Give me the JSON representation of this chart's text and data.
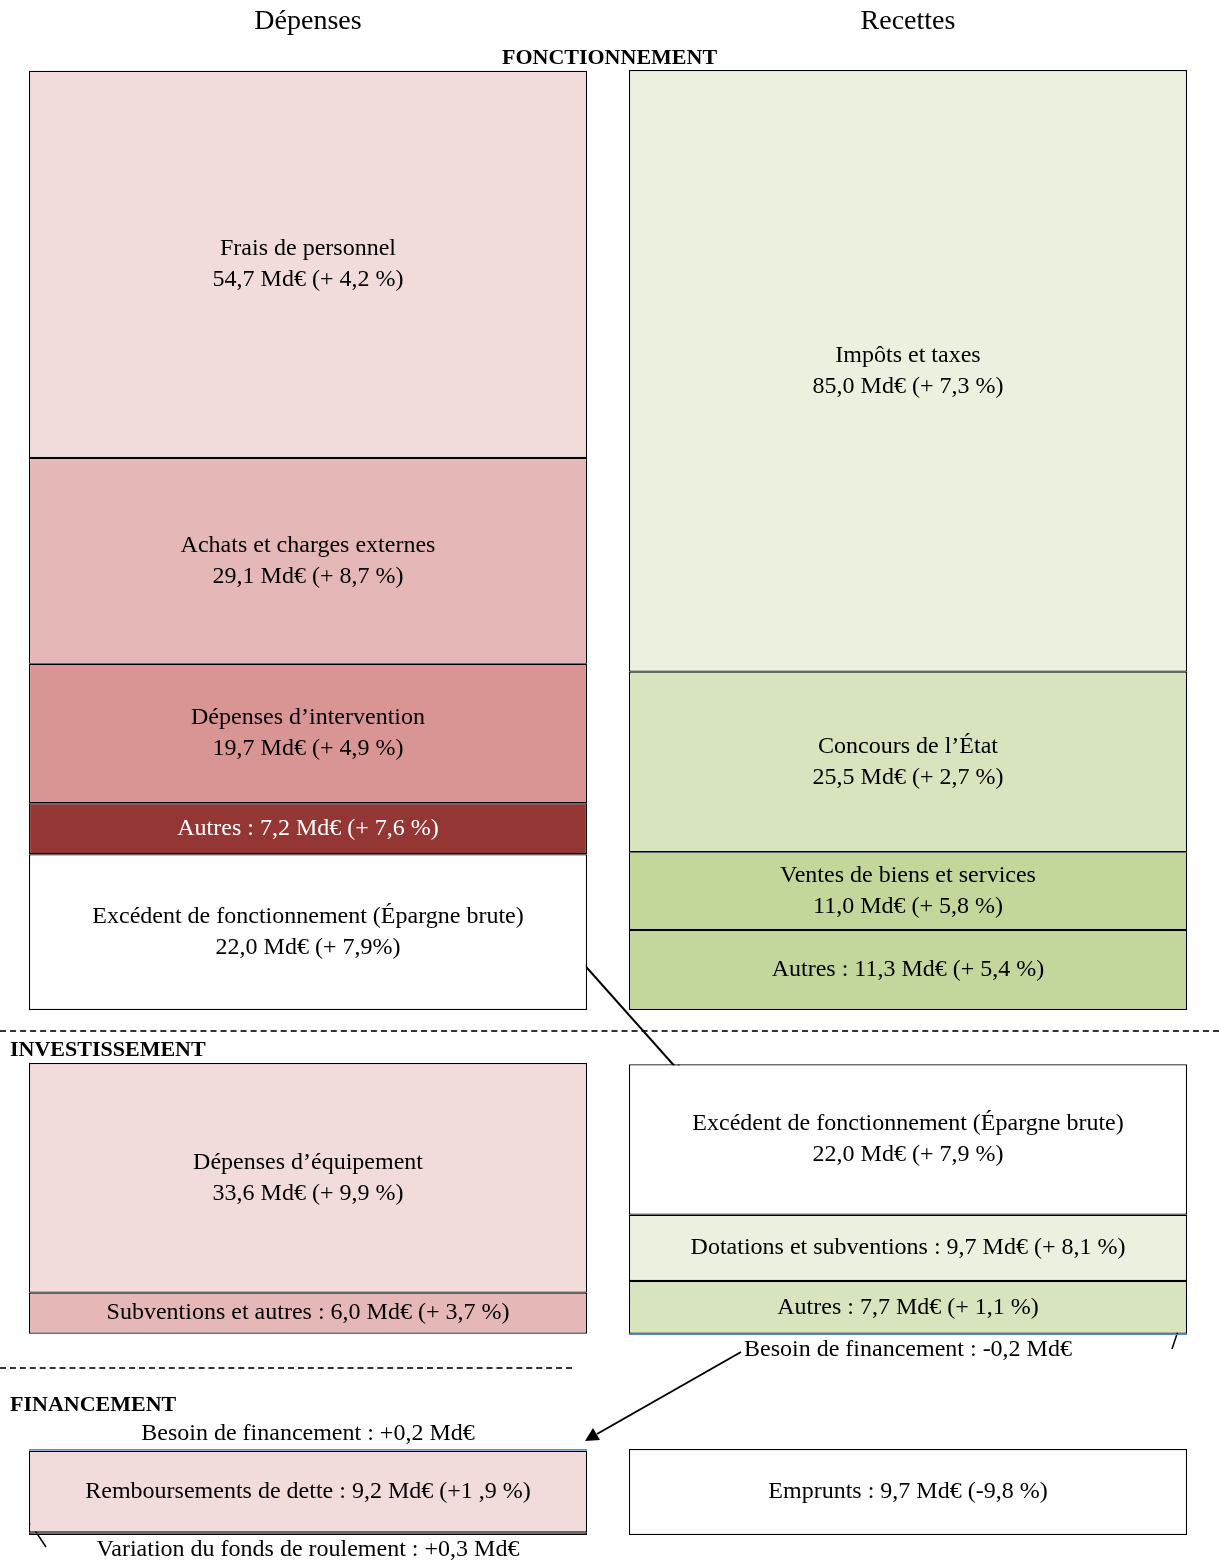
{
  "chart_data": [
    {
      "type": "bar",
      "stacked": true,
      "title": "FONCTIONNEMENT",
      "categories": [
        "Dépenses",
        "Recettes"
      ],
      "series": [
        {
          "color": "#ffffff",
          "values": [
            22.0,
            null
          ],
          "value_labels": [
            "Excédent de fonctionnement (Épargne brute)\n22,0 Md€ (+ 7,9%)",
            null
          ]
        },
        {
          "color": "#943634",
          "values": [
            7.2,
            null
          ],
          "value_labels": [
            "Autres : 7,2 Md€ (+ 7,6 %)",
            null
          ]
        },
        {
          "color": "#d99594",
          "values": [
            19.7,
            null
          ],
          "value_labels": [
            "Dépenses d’intervention\n19,7 Md€ (+ 4,9 %)",
            null
          ]
        },
        {
          "color": "#e5b8b7",
          "values": [
            29.1,
            null
          ],
          "value_labels": [
            "Achats et charges externes\n29,1 Md€ (+ 8,7 %)",
            null
          ]
        },
        {
          "color": "#f2dcdb",
          "values": [
            54.7,
            null
          ],
          "value_labels": [
            "Frais de personnel\n54,7 Md€ (+ 4,2 %)",
            null
          ]
        },
        {
          "color": "#c3d69b",
          "values": [
            null,
            11.3
          ],
          "value_labels": [
            null,
            "Autres : 11,3 Md€ (+ 5,4 %)"
          ]
        },
        {
          "color": "#c4d79b",
          "values": [
            null,
            11.0
          ],
          "value_labels": [
            null,
            "Ventes de biens et services\n11,0 Md€ (+ 5,8 %)"
          ]
        },
        {
          "color": "#d7e4bd",
          "values": [
            null,
            25.5
          ],
          "value_labels": [
            null,
            "Concours de l’État\n25,5 Md€ (+ 2,7 %)"
          ]
        },
        {
          "color": "#ebf1de",
          "values": [
            null,
            85.0
          ],
          "value_labels": [
            null,
            "Impôts et taxes\n85,0 Md€ (+ 7,3 %)"
          ]
        }
      ]
    },
    {
      "type": "bar",
      "stacked": true,
      "title": "INVESTISSEMENT",
      "categories": [
        null,
        null
      ],
      "series": [
        {
          "color": "#e5b8b7",
          "values": [
            6.0,
            null
          ],
          "value_labels": [
            "Subventions et autres : 6,0 Md€ (+ 3,7 %)",
            null
          ]
        },
        {
          "color": "#f2dcdb",
          "values": [
            33.6,
            null
          ],
          "value_labels": [
            "Dépenses d’équipement\n33,6 Md€ (+ 9,9 %)",
            null
          ]
        },
        {
          "color": "#558ed5",
          "values": [
            null,
            -0.2
          ],
          "value_labels": [
            null,
            "Besoin de financement : -0,2 Md€"
          ]
        },
        {
          "color": "#d7e4bd",
          "values": [
            null,
            7.7
          ],
          "value_labels": [
            null,
            "Autres : 7,7 Md€ (+ 1,1 %)"
          ]
        },
        {
          "color": "#ebf1de",
          "values": [
            null,
            9.7
          ],
          "value_labels": [
            null,
            "Dotations et subventions : 9,7 Md€ (+ 8,1 %)"
          ]
        },
        {
          "color": "#ffffff",
          "values": [
            null,
            22.0
          ],
          "value_labels": [
            null,
            "Excédent de fonctionnement (Épargne brute)\n22,0 Md€ (+ 7,9 %)"
          ]
        }
      ]
    },
    {
      "type": "bar",
      "stacked": true,
      "title": "FINANCEMENT",
      "categories": [
        null,
        null
      ],
      "series": [
        {
          "color": "#ffffff",
          "values": [
            0.3,
            null
          ],
          "value_labels": [
            "Variation du fonds de roulement : +0,3 Md€",
            null
          ]
        },
        {
          "color": "#f2dcdb",
          "values": [
            9.2,
            null
          ],
          "value_labels": [
            "Remboursements de dette : 9,2 Md€ (+1 ,9 %)",
            null
          ]
        },
        {
          "color": "#558ed5",
          "values": [
            0.2,
            null
          ],
          "value_labels": [
            "Besoin de financement : +0,2 Md€",
            null
          ]
        },
        {
          "color": "#ffffff",
          "values": [
            null,
            9.7
          ],
          "value_labels": [
            null,
            "Emprunts : 9,7 Md€ (-9,8 %)"
          ]
        }
      ]
    }
  ]
}
